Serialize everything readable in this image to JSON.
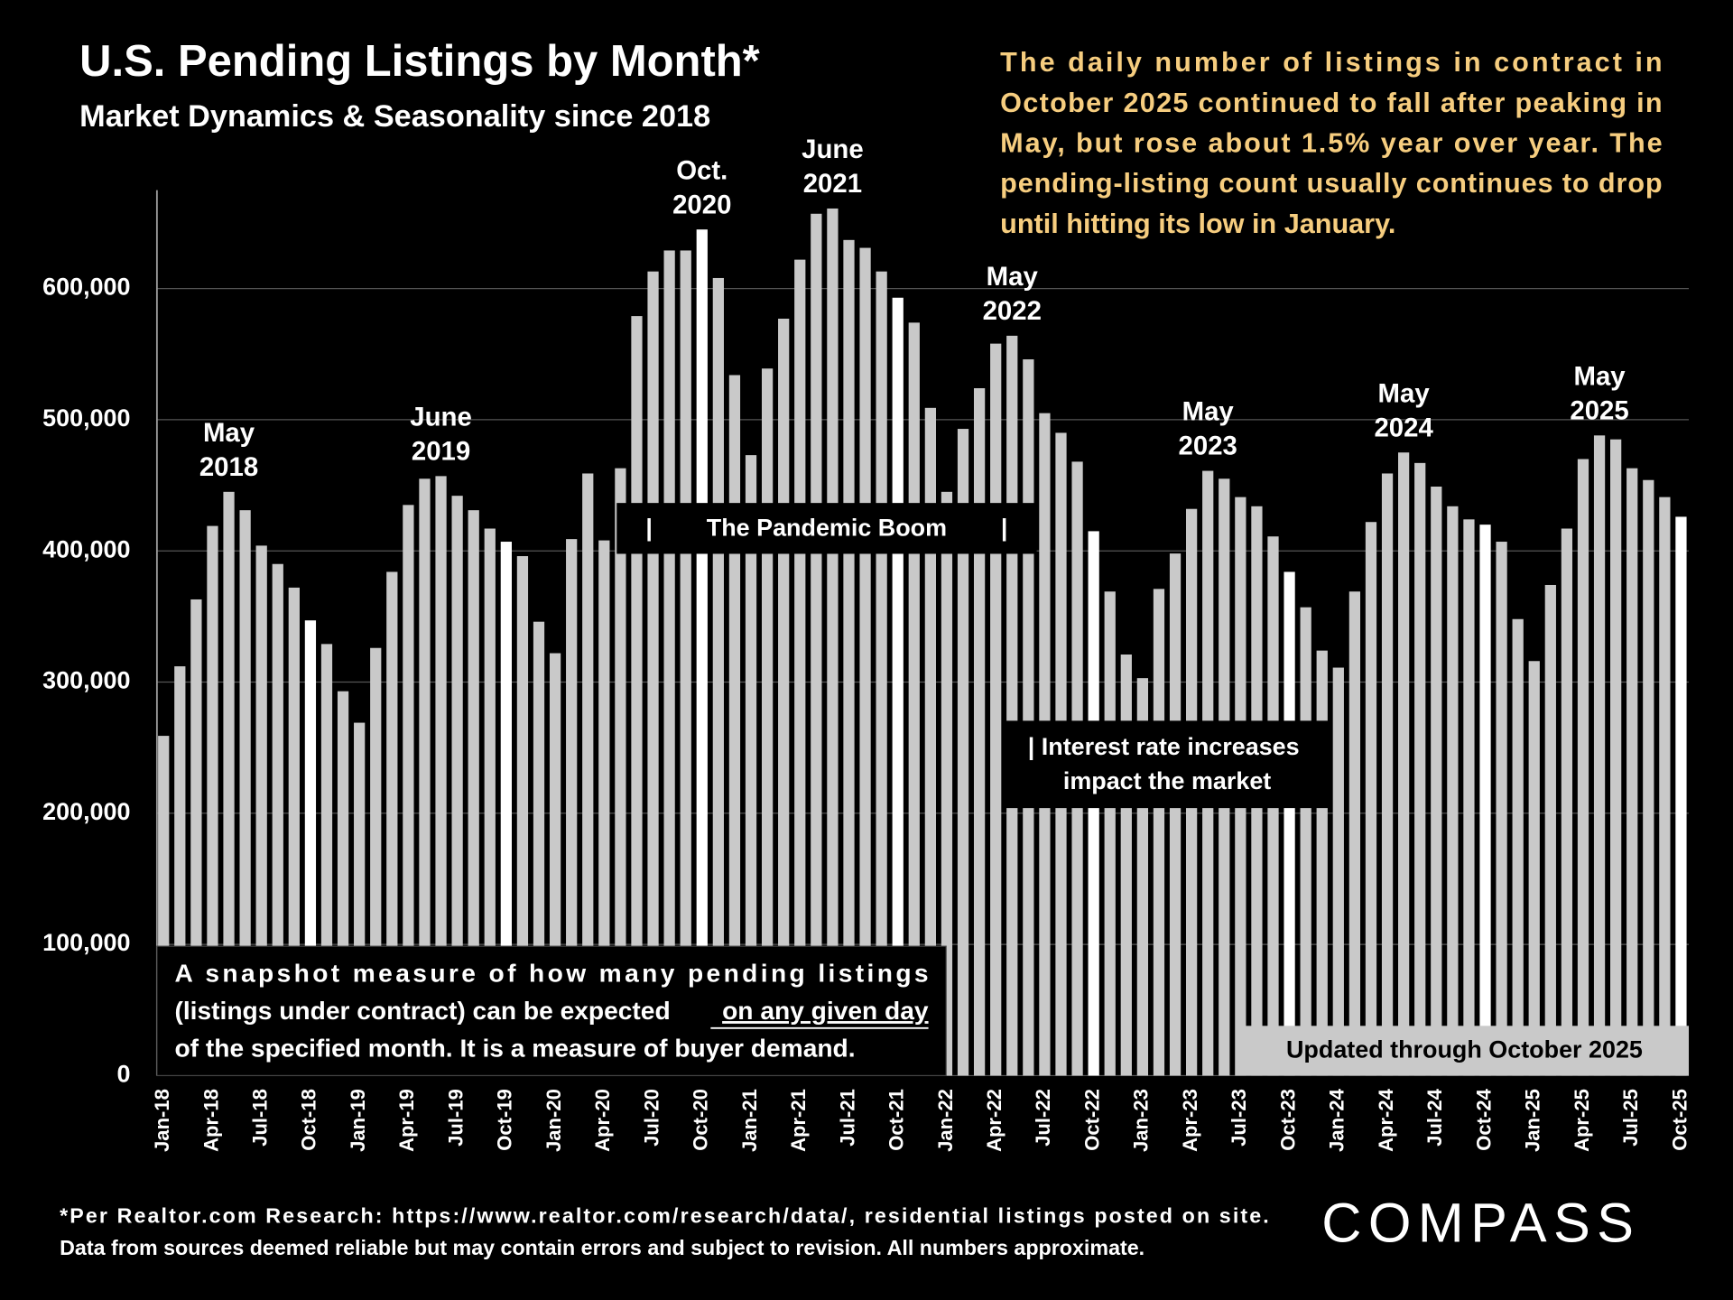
{
  "chart_data": {
    "type": "bar",
    "title": "U.S. Pending Listings by Month*",
    "subtitle": "Market Dynamics & Seasonality since 2018",
    "side_note": [
      "The daily number of listings in contract in",
      "October 2025 continued to fall after peaking in",
      "May, but rose about 1.5% year over year. The",
      "pending-listing count usually continues to drop",
      "until hitting its low in January."
    ],
    "categories": [
      "Jan-18",
      null,
      null,
      "Apr-18",
      null,
      null,
      "Jul-18",
      null,
      null,
      "Oct-18",
      null,
      null,
      "Jan-19",
      null,
      null,
      "Apr-19",
      null,
      null,
      "Jul-19",
      null,
      null,
      "Oct-19",
      null,
      null,
      "Jan-20",
      null,
      null,
      "Apr-20",
      null,
      null,
      "Jul-20",
      null,
      null,
      "Oct-20",
      null,
      null,
      "Jan-21",
      null,
      null,
      "Apr-21",
      null,
      null,
      "Jul-21",
      null,
      null,
      "Oct-21",
      null,
      null,
      "Jan-22",
      null,
      null,
      "Apr-22",
      null,
      null,
      "Jul-22",
      null,
      null,
      "Oct-22",
      null,
      null,
      "Jan-23",
      null,
      null,
      "Apr-23",
      null,
      null,
      "Jul-23",
      null,
      null,
      "Oct-23",
      null,
      null,
      "Jan-24",
      null,
      null,
      "Apr-24",
      null,
      null,
      "Jul-24",
      null,
      null,
      "Oct-24",
      null,
      null,
      "Jan-25",
      null,
      null,
      "Apr-25",
      null,
      null,
      "Jul-25",
      null,
      null,
      "Oct-25"
    ],
    "values": [
      259000,
      312000,
      363000,
      419000,
      445000,
      431000,
      404000,
      390000,
      372000,
      347000,
      329000,
      293000,
      269000,
      326000,
      384000,
      435000,
      455000,
      457000,
      442000,
      431000,
      417000,
      407000,
      396000,
      346000,
      322000,
      409000,
      459000,
      408000,
      463000,
      579000,
      613000,
      629000,
      629000,
      645000,
      608000,
      534000,
      473000,
      539000,
      577000,
      622000,
      657000,
      661000,
      637000,
      631000,
      613000,
      593000,
      574000,
      509000,
      445000,
      493000,
      524000,
      558000,
      564000,
      546000,
      505000,
      490000,
      468000,
      415000,
      369000,
      321000,
      303000,
      371000,
      398000,
      432000,
      461000,
      455000,
      441000,
      434000,
      411000,
      384000,
      357000,
      324000,
      311000,
      369000,
      422000,
      459000,
      475000,
      467000,
      449000,
      434000,
      424000,
      420000,
      407000,
      348000,
      316000,
      374000,
      417000,
      470000,
      488000,
      485000,
      463000,
      454000,
      441000,
      426000
    ],
    "colors": [
      "#c9c9c9",
      "#c9c9c9",
      "#c9c9c9",
      "#c9c9c9",
      "#c9c9c9",
      "#c9c9c9",
      "#c9c9c9",
      "#c9c9c9",
      "#c9c9c9",
      "#ffffff",
      "#c9c9c9",
      "#c9c9c9",
      "#c9c9c9",
      "#c9c9c9",
      "#c9c9c9",
      "#c9c9c9",
      "#c9c9c9",
      "#c9c9c9",
      "#c9c9c9",
      "#c9c9c9",
      "#c9c9c9",
      "#ffffff",
      "#c9c9c9",
      "#c9c9c9",
      "#c9c9c9",
      "#c9c9c9",
      "#c9c9c9",
      "#c9c9c9",
      "#c9c9c9",
      "#c9c9c9",
      "#c9c9c9",
      "#c9c9c9",
      "#c9c9c9",
      "#ffffff",
      "#c9c9c9",
      "#c9c9c9",
      "#c9c9c9",
      "#c9c9c9",
      "#c9c9c9",
      "#c9c9c9",
      "#c9c9c9",
      "#c9c9c9",
      "#c9c9c9",
      "#c9c9c9",
      "#c9c9c9",
      "#ffffff",
      "#c9c9c9",
      "#c9c9c9",
      "#c9c9c9",
      "#c9c9c9",
      "#c9c9c9",
      "#c9c9c9",
      "#c9c9c9",
      "#c9c9c9",
      "#c9c9c9",
      "#c9c9c9",
      "#c9c9c9",
      "#ffffff",
      "#c9c9c9",
      "#c9c9c9",
      "#c9c9c9",
      "#c9c9c9",
      "#c9c9c9",
      "#c9c9c9",
      "#c9c9c9",
      "#c9c9c9",
      "#c9c9c9",
      "#c9c9c9",
      "#c9c9c9",
      "#ffffff",
      "#c9c9c9",
      "#c9c9c9",
      "#c9c9c9",
      "#c9c9c9",
      "#c9c9c9",
      "#c9c9c9",
      "#c9c9c9",
      "#c9c9c9",
      "#c9c9c9",
      "#c9c9c9",
      "#c9c9c9",
      "#ffffff",
      "#c9c9c9",
      "#c9c9c9",
      "#c9c9c9",
      "#c9c9c9",
      "#c9c9c9",
      "#c9c9c9",
      "#c9c9c9",
      "#c9c9c9",
      "#c9c9c9",
      "#c9c9c9",
      "#c9c9c9",
      "#ffffff"
    ],
    "ylim": [
      0,
      675000
    ],
    "yticks": [
      0,
      {
        "value": 100000,
        "label": "100,000"
      },
      {
        "value": 200000,
        "label": "200,000"
      },
      {
        "value": 300000,
        "label": "300,000"
      },
      {
        "value": 400000,
        "label": "400,000"
      },
      {
        "value": 500000,
        "label": "500,000"
      },
      {
        "value": 600000,
        "label": "600,000"
      }
    ],
    "grid": true,
    "peak_labels": [
      [
        "May",
        "2018"
      ],
      [
        "June",
        "2019"
      ],
      [
        "Oct.",
        "2020"
      ],
      [
        "June",
        "2021"
      ],
      [
        "May",
        "2022"
      ],
      [
        "May",
        "2023"
      ],
      [
        "May",
        "2024"
      ],
      [
        "May",
        "2025"
      ]
    ],
    "pandemic_label": "|        The Pandemic Boom        |",
    "rates_label": [
      "| Interest rate increases",
      "impact the market"
    ],
    "note": [
      "A snapshot measure of how many pending listings",
      "(listings under contract) can be expected",
      "on any given day",
      "of the specified month. It is a measure of buyer demand."
    ],
    "updated": "Updated through October 2025",
    "footnote": [
      "*Per Realtor.com Research:  https://www.realtor.com/research/data/, residential listings posted on site.",
      "Data from sources deemed reliable but may contain errors and subject to revision. All numbers approximate."
    ],
    "logo": "COMPASS"
  }
}
